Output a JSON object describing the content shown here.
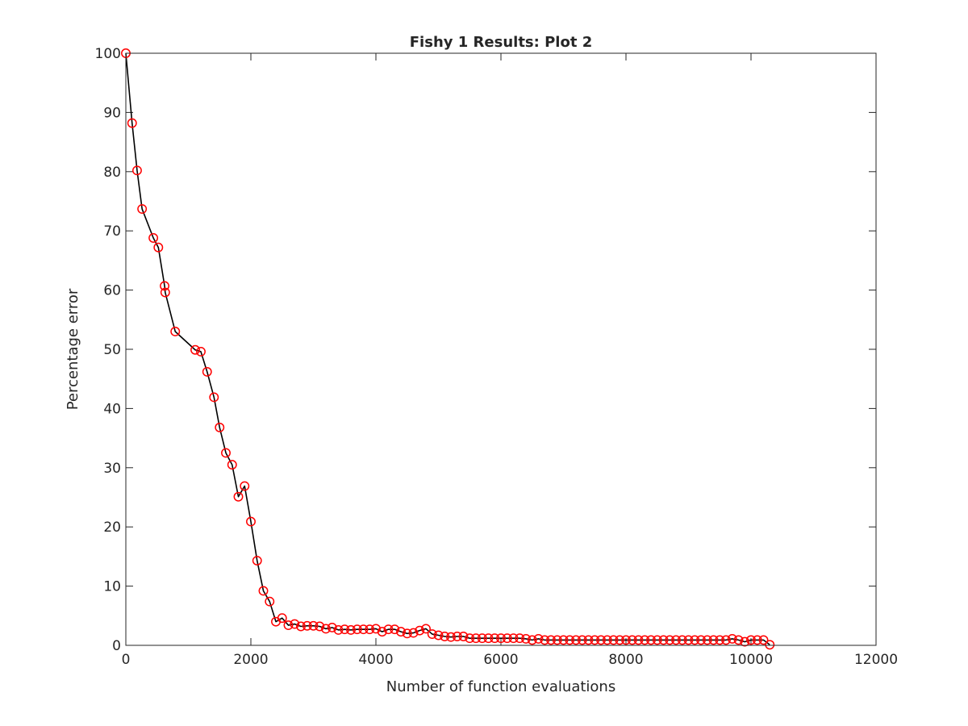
{
  "chart_data": {
    "type": "line",
    "title": "Fishy 1 Results: Plot 2",
    "xlabel": "Number of function evaluations",
    "ylabel": "Percentage error",
    "xlim": [
      0,
      12000
    ],
    "ylim": [
      0,
      100
    ],
    "xticks": [
      0,
      2000,
      4000,
      6000,
      8000,
      10000,
      12000
    ],
    "xtick_labels": [
      "0",
      "2000",
      "4000",
      "6000",
      "8000",
      "10000",
      "12000"
    ],
    "yticks": [
      0,
      10,
      20,
      30,
      40,
      50,
      60,
      70,
      80,
      90,
      100
    ],
    "ytick_labels": [
      "0",
      "10",
      "20",
      "30",
      "40",
      "50",
      "60",
      "70",
      "80",
      "90",
      "100"
    ],
    "grid": false,
    "line_color": "#000000",
    "marker_color": "#ff0000",
    "marker": "circle",
    "series": [
      {
        "x": [
          0,
          100,
          180,
          260,
          440,
          520,
          620,
          630,
          790,
          1110,
          1200,
          1300,
          1410,
          1500,
          1600,
          1700,
          1800,
          1900,
          2000,
          2100,
          2200,
          2300,
          2400,
          2500,
          2600,
          2700,
          2800,
          2900,
          3000,
          3100,
          3200,
          3300,
          3400,
          3500,
          3600,
          3700,
          3800,
          3900,
          4000,
          4100,
          4200,
          4300,
          4400,
          4500,
          4600,
          4700,
          4800,
          4900,
          5000,
          5100,
          5200,
          5300,
          5400,
          5500,
          5600,
          5700,
          5800,
          5900,
          6000,
          6100,
          6200,
          6300,
          6400,
          6500,
          6600,
          6700,
          6800,
          6900,
          7000,
          7100,
          7200,
          7300,
          7400,
          7500,
          7600,
          7700,
          7800,
          7900,
          8000,
          8100,
          8200,
          8300,
          8400,
          8500,
          8600,
          8700,
          8800,
          8900,
          9000,
          9100,
          9200,
          9300,
          9400,
          9500,
          9600,
          9700,
          9800,
          9900,
          10000,
          10100,
          10200,
          10300
        ],
        "y": [
          100,
          88.2,
          80.2,
          73.7,
          68.8,
          67.2,
          60.7,
          59.6,
          53.0,
          49.9,
          49.6,
          46.2,
          41.9,
          36.8,
          32.5,
          30.5,
          25.1,
          26.9,
          20.9,
          14.3,
          9.2,
          7.4,
          4.0,
          4.6,
          3.4,
          3.6,
          3.2,
          3.3,
          3.3,
          3.2,
          2.8,
          3.0,
          2.6,
          2.7,
          2.6,
          2.7,
          2.7,
          2.7,
          2.8,
          2.3,
          2.7,
          2.7,
          2.3,
          2.0,
          2.1,
          2.5,
          2.8,
          1.9,
          1.7,
          1.5,
          1.4,
          1.5,
          1.5,
          1.2,
          1.2,
          1.2,
          1.2,
          1.2,
          1.2,
          1.2,
          1.2,
          1.2,
          1.1,
          0.9,
          1.1,
          0.9,
          0.9,
          0.9,
          0.9,
          0.9,
          0.9,
          0.9,
          0.9,
          0.9,
          0.9,
          0.9,
          0.9,
          0.9,
          0.9,
          0.9,
          0.9,
          0.9,
          0.9,
          0.9,
          0.9,
          0.9,
          0.9,
          0.9,
          0.9,
          0.9,
          0.9,
          0.9,
          0.9,
          0.9,
          0.9,
          1.1,
          0.9,
          0.6,
          0.9,
          0.9,
          0.9,
          0.1
        ]
      }
    ]
  }
}
